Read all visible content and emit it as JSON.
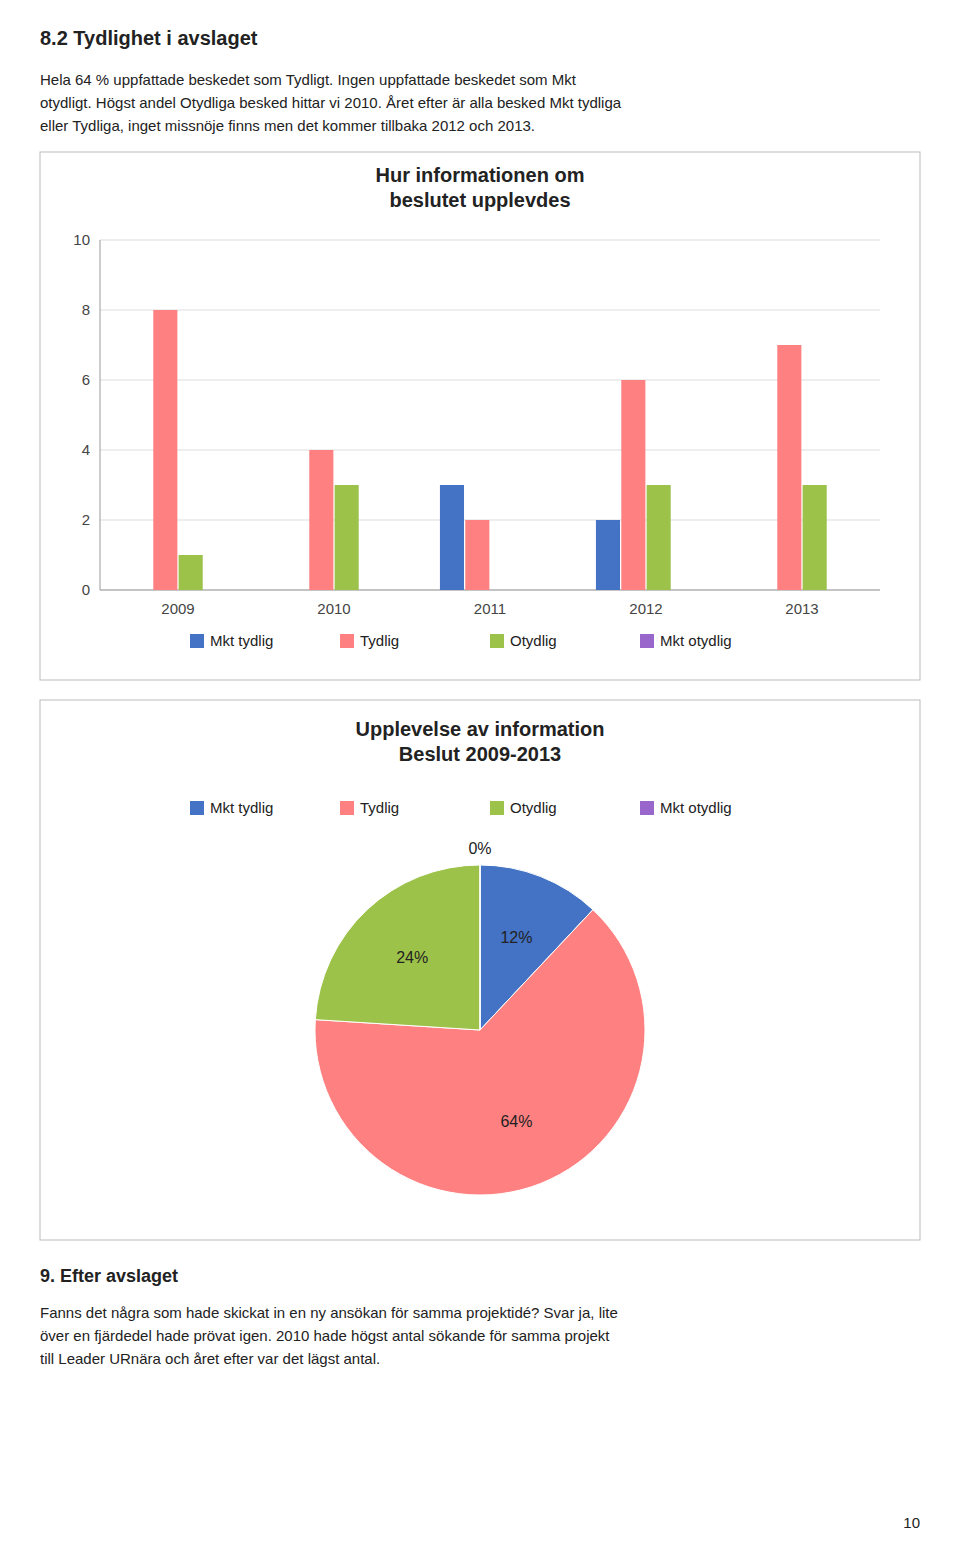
{
  "title": "8.2 Tydlighet i avslaget",
  "intro": [
    "Hela 64 % uppfattade beskedet som Tydligt. Ingen uppfattade beskedet som Mkt",
    "otydligt. Högst andel Otydliga besked hittar vi 2010. Året efter är alla besked Mkt tydliga",
    "eller Tydliga, inget missnöje finns men det kommer tillbaka 2012 och 2013."
  ],
  "section_title": "9. Efter avslaget",
  "body": [
    "Fanns det några som hade skickat in en ny ansökan för samma projektidé? Svar ja, lite",
    "över en fjärdedel hade prövat igen. 2010 hade högst antal sökande för samma projekt",
    "till Leader URnära och året efter var det lägst antal."
  ],
  "page_number": "10",
  "chart_data": [
    {
      "type": "bar",
      "title": "Hur informationen om\nbeslutet upplevdes",
      "categories": [
        "2009",
        "2010",
        "2011",
        "2012",
        "2013"
      ],
      "series": [
        {
          "name": "Mkt tydlig",
          "color": "#4472C4",
          "values": [
            0,
            0,
            3,
            2,
            0
          ]
        },
        {
          "name": "Tydlig",
          "color": "#FF8080",
          "values": [
            8,
            4,
            2,
            6,
            7
          ]
        },
        {
          "name": "Otydlig",
          "color": "#9DC24A",
          "values": [
            1,
            3,
            0,
            3,
            3
          ]
        },
        {
          "name": "Mkt otydlig",
          "color": "#9966CC",
          "values": [
            0,
            0,
            0,
            0,
            0
          ]
        }
      ],
      "ylim": [
        0,
        10
      ],
      "yticks": [
        0,
        2,
        4,
        6,
        8,
        10
      ],
      "grid": true,
      "legend": "bottom"
    },
    {
      "type": "pie",
      "title": "Upplevelse av information\nBeslut 2009-2013",
      "categories": [
        "Mkt tydlig",
        "Tydlig",
        "Otydlig",
        "Mkt otydlig"
      ],
      "values": [
        12,
        64,
        24,
        0
      ],
      "value_labels": [
        "12%",
        "64%",
        "24%",
        "0%"
      ],
      "colors": [
        "#4472C4",
        "#FF8080",
        "#9DC24A",
        "#9966CC"
      ],
      "data_labels": true,
      "legend": "top"
    }
  ]
}
